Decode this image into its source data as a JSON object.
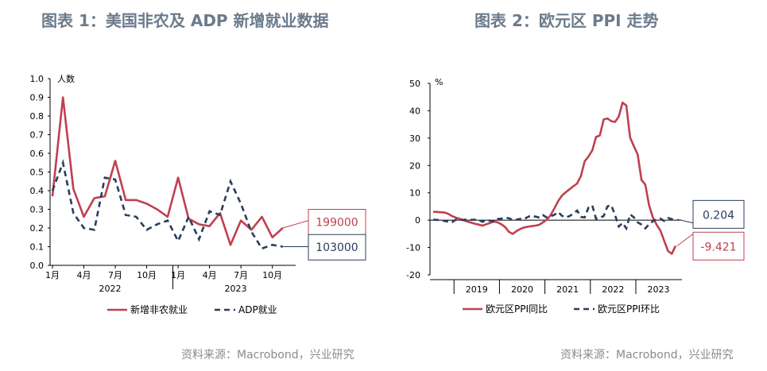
{
  "left_panel": {
    "title": "图表 1：美国非农及 ADP 新增就业数据",
    "source": "资料来源：Macrobond，兴业研究"
  },
  "right_panel": {
    "title": "图表 2：欧元区 PPI 走势",
    "source": "资料来源：Macrobond，兴业研究"
  },
  "colors": {
    "series_a": "#c0404f",
    "series_b": "#2b3d5c",
    "title": "#6b7b8c"
  },
  "chart_data": [
    {
      "type": "line",
      "ylabel": "人数",
      "ylim": [
        0.0,
        1.0
      ],
      "yticks": [
        0.0,
        0.1,
        0.2,
        0.3,
        0.4,
        0.5,
        0.6,
        0.7,
        0.8,
        0.9,
        1.0
      ],
      "ytick_labels": [
        "0.0",
        "0.1",
        "0.2",
        "0.3",
        "0.4",
        "0.5",
        "0.6",
        "0.7",
        "0.8",
        "0.9",
        "1.0"
      ],
      "x": [
        "2022-01",
        "2022-02",
        "2022-03",
        "2022-04",
        "2022-05",
        "2022-06",
        "2022-07",
        "2022-08",
        "2022-09",
        "2022-10",
        "2022-11",
        "2022-12",
        "2023-01",
        "2023-02",
        "2023-03",
        "2023-04",
        "2023-05",
        "2023-06",
        "2023-07",
        "2023-08",
        "2023-09",
        "2023-10",
        "2023-11",
        "2023-12"
      ],
      "xtick_labels": [
        "1月",
        "4月",
        "7月",
        "10月",
        "1月",
        "4月",
        "7月",
        "10月"
      ],
      "year_labels": [
        "2022",
        "2023"
      ],
      "series": [
        {
          "name": "新增非农就业",
          "style": "solid",
          "values": [
            0.37,
            0.9,
            0.41,
            0.26,
            0.36,
            0.37,
            0.56,
            0.35,
            0.35,
            0.33,
            0.3,
            0.26,
            0.47,
            0.25,
            0.22,
            0.21,
            0.28,
            0.11,
            0.24,
            0.19,
            0.26,
            0.15,
            0.2,
            null
          ]
        },
        {
          "name": "ADP就业",
          "style": "dashed",
          "values": [
            0.4,
            0.55,
            0.28,
            0.2,
            0.19,
            0.47,
            0.46,
            0.27,
            0.26,
            0.19,
            0.22,
            0.24,
            0.13,
            0.26,
            0.14,
            0.29,
            0.27,
            0.45,
            0.33,
            0.18,
            0.09,
            0.11,
            0.1,
            null
          ]
        }
      ],
      "annotations": [
        {
          "series": "新增非农就业",
          "text": "199000"
        },
        {
          "series": "ADP就业",
          "text": "103000"
        }
      ],
      "legend": "bottom"
    },
    {
      "type": "line",
      "ylabel": "%",
      "ylim": [
        -20,
        50
      ],
      "yticks": [
        -20,
        -10,
        0,
        10,
        20,
        30,
        40,
        50
      ],
      "ytick_labels": [
        "-20",
        "-10",
        "0",
        "10",
        "20",
        "30",
        "40",
        "50"
      ],
      "x_start": "2018-07",
      "x_end": "2023-12",
      "year_labels": [
        "2019",
        "2020",
        "2021",
        "2022",
        "2023"
      ],
      "series": [
        {
          "name": "欧元区PPI同比",
          "style": "solid",
          "values": [
            3.1,
            3.0,
            2.9,
            2.8,
            2.3,
            1.5,
            0.9,
            0.5,
            0.0,
            -0.5,
            -0.9,
            -1.3,
            -1.6,
            -2.0,
            -1.5,
            -1.0,
            -0.5,
            -0.8,
            -1.5,
            -2.5,
            -4.3,
            -5.0,
            -4.0,
            -3.2,
            -2.7,
            -2.4,
            -2.2,
            -2.0,
            -1.7,
            -0.8,
            0.2,
            1.8,
            4.3,
            7.0,
            9.0,
            10.2,
            11.3,
            12.4,
            13.4,
            16.2,
            21.5,
            23.3,
            25.5,
            30.4,
            31.0,
            36.8,
            37.2,
            36.2,
            35.9,
            37.9,
            43.0,
            41.9,
            30.2,
            27.0,
            24.0,
            14.7,
            13.0,
            5.5,
            1.0,
            -1.7,
            -3.8,
            -7.6,
            -11.3,
            -12.3,
            -9.4
          ],
          "annotation": "-9.421"
        },
        {
          "name": "欧元区PPI环比",
          "style": "dashed",
          "values": [
            0.2,
            0.1,
            0.0,
            -0.3,
            -0.5,
            -0.7,
            0.2,
            0.1,
            0.1,
            0.3,
            0.1,
            0.2,
            0.1,
            -0.6,
            0.0,
            -0.2,
            -0.5,
            0.4,
            0.6,
            0.9,
            0.7,
            0.1,
            0.2,
            0.5,
            0.4,
            1.2,
            1.7,
            1.3,
            1.0,
            1.8,
            1.0,
            1.4,
            2.0,
            3.0,
            1.6,
            1.0,
            1.5,
            2.4,
            3.5,
            1.2,
            1.0,
            4.6,
            5.4,
            0.5,
            0.9,
            1.5,
            5.0,
            5.5,
            1.9,
            -2.3,
            -1.0,
            -3.0,
            2.1,
            1.0,
            -0.8,
            -1.6,
            -3.0,
            -1.5,
            -0.4,
            0.3,
            0.6,
            -0.3,
            0.8,
            0.4,
            0.2
          ],
          "annotation": "0.204"
        }
      ],
      "legend": "bottom"
    }
  ]
}
